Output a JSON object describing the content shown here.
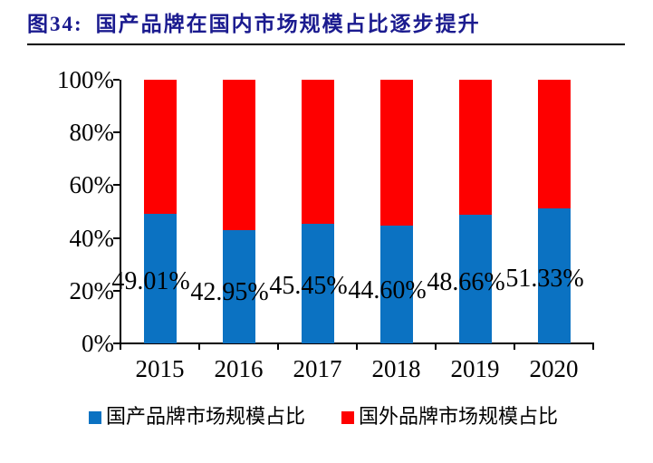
{
  "title": {
    "prefix": "图34:",
    "text": "国产品牌在国内市场规模占比逐步提升",
    "color": "#1B1B8F"
  },
  "chart_data": {
    "type": "bar",
    "stacked": true,
    "title": "国产品牌在国内市场规模占比逐步提升",
    "categories": [
      "2015",
      "2016",
      "2017",
      "2018",
      "2019",
      "2020"
    ],
    "series": [
      {
        "name": "国产品牌市场规模占比",
        "color": "#0B72C2",
        "values": [
          49.01,
          42.95,
          45.45,
          44.6,
          48.66,
          51.33
        ]
      },
      {
        "name": "国外品牌市场规模占比",
        "color": "#FE0000",
        "values": [
          50.99,
          57.05,
          54.55,
          55.4,
          51.34,
          48.67
        ]
      }
    ],
    "data_labels": [
      "49.01%",
      "42.95%",
      "45.45%",
      "44.60%",
      "48.66%",
      "51.33%"
    ],
    "xlabel": "",
    "ylabel": "",
    "ylim": [
      0,
      100
    ],
    "yticks": [
      "0%",
      "20%",
      "40%",
      "60%",
      "80%",
      "100%"
    ],
    "grid": false,
    "legend_position": "bottom"
  },
  "legend": {
    "items": [
      {
        "label": "国产品牌市场规模占比",
        "color": "#0B72C2"
      },
      {
        "label": "国外品牌市场规模占比",
        "color": "#FE0000"
      }
    ]
  }
}
